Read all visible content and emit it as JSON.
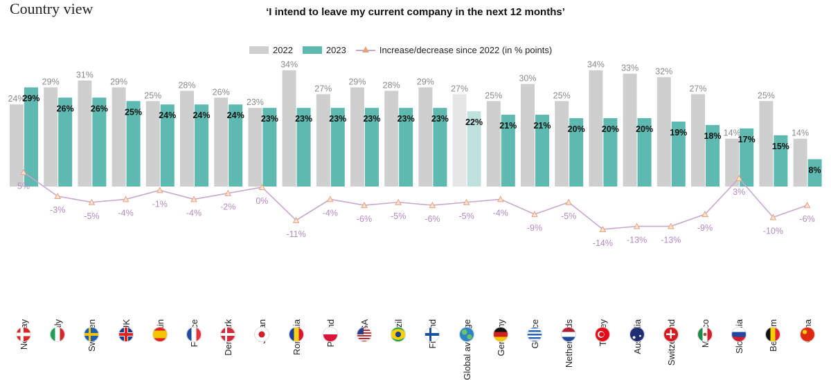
{
  "page_title": "Country view",
  "chart_data": {
    "type": "bar",
    "title": "‘I intend to leave my current company in the next 12 months’",
    "legend": {
      "placement": "top-center",
      "items": [
        "2022",
        "2023",
        "Increase/decrease since 2022 (in % points)"
      ]
    },
    "categories": [
      "Norway",
      "Italy",
      "Sweden",
      "UK",
      "Spain",
      "France",
      "Denmark",
      "Japan",
      "Romania",
      "Poland",
      "USA",
      "Brazil",
      "Finland",
      "Global average",
      "Germany",
      "Greece",
      "Netherlands",
      "Turkey",
      "Australia",
      "Switzerland",
      "Mexico",
      "Slovenia",
      "Belgium",
      "China"
    ],
    "series": [
      {
        "name": "2022",
        "color": "#cfcfcf",
        "values": [
          24,
          29,
          31,
          29,
          25,
          28,
          26,
          23,
          34,
          27,
          29,
          28,
          29,
          27,
          25,
          30,
          25,
          34,
          33,
          32,
          27,
          14,
          25,
          14
        ]
      },
      {
        "name": "2023",
        "color": "#5ebab0",
        "values": [
          29,
          26,
          26,
          25,
          24,
          24,
          24,
          23,
          23,
          23,
          23,
          23,
          23,
          22,
          21,
          21,
          20,
          20,
          20,
          19,
          18,
          17,
          15,
          8
        ]
      },
      {
        "name": "Increase/decrease since 2022 (in % points)",
        "type": "line",
        "color": "#c9a6cf",
        "marker_color": "#e8a27b",
        "values": [
          5,
          -3,
          -5,
          -4,
          -1,
          -4,
          -2,
          0,
          -11,
          -4,
          -6,
          -5,
          -6,
          -5,
          -4,
          -9,
          -5,
          -14,
          -13,
          -13,
          -9,
          3,
          -10,
          -6
        ]
      }
    ],
    "label_format": "{v}%",
    "highlight_category": "Global average",
    "highlight_colors": {
      "2022": "#e6e6e6",
      "2023": "#bfe2de"
    },
    "grid": false
  },
  "flags": [
    "norway-flag-icon",
    "italy-flag-icon",
    "sweden-flag-icon",
    "uk-flag-icon",
    "spain-flag-icon",
    "france-flag-icon",
    "denmark-flag-icon",
    "japan-flag-icon",
    "romania-flag-icon",
    "poland-flag-icon",
    "usa-flag-icon",
    "brazil-flag-icon",
    "finland-flag-icon",
    "globe-icon",
    "germany-flag-icon",
    "greece-flag-icon",
    "netherlands-flag-icon",
    "turkey-flag-icon",
    "australia-flag-icon",
    "switzerland-flag-icon",
    "mexico-flag-icon",
    "slovenia-flag-icon",
    "belgium-flag-icon",
    "china-flag-icon"
  ]
}
